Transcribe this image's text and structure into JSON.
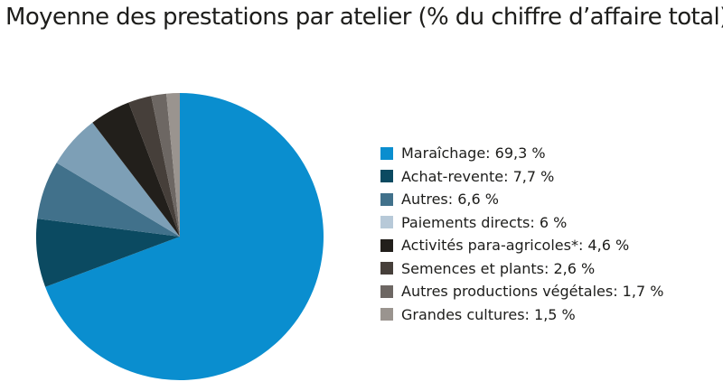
{
  "chart_data": {
    "type": "pie",
    "title": "Moyenne des prestations par atelier (% du chiffre d’affaire total)",
    "start": "top",
    "direction": "clockwise",
    "slices": [
      {
        "label": "Maraîchage: 69,3 %",
        "name": "Maraîchage",
        "value": 69.3,
        "color": "#0a8ecf",
        "legend_color": "#0a8ecf"
      },
      {
        "label": "Achat-revente: 7,7 %",
        "name": "Achat-revente",
        "value": 7.7,
        "color": "#0b4a61",
        "legend_color": "#0b4a61"
      },
      {
        "label": "Autres: 6,6 %",
        "name": "Autres",
        "value": 6.6,
        "color": "#41718b",
        "legend_color": "#41718b"
      },
      {
        "label": "Paiements directs: 6 %",
        "name": "Paiements directs",
        "value": 6,
        "color": "#7d9fb6",
        "legend_color": "#b7c9d8"
      },
      {
        "label": "Activités para-agricoles*: 4,6 %",
        "name": "Activités para-agricoles*",
        "value": 4.6,
        "color": "#221f1b",
        "legend_color": "#221f1b"
      },
      {
        "label": "Semences et plants: 2,6 %",
        "name": "Semences et plants",
        "value": 2.6,
        "color": "#463f3a",
        "legend_color": "#463f3a"
      },
      {
        "label": "Autres productions végétales: 1,7 %",
        "name": "Autres productions végétales",
        "value": 1.7,
        "color": "#6d6763",
        "legend_color": "#6d6763"
      },
      {
        "label": "Grandes cultures: 1,5 %",
        "name": "Grandes cultures",
        "value": 1.5,
        "color": "#9a948f",
        "legend_color": "#9a948f"
      }
    ],
    "legend_position": "right"
  }
}
